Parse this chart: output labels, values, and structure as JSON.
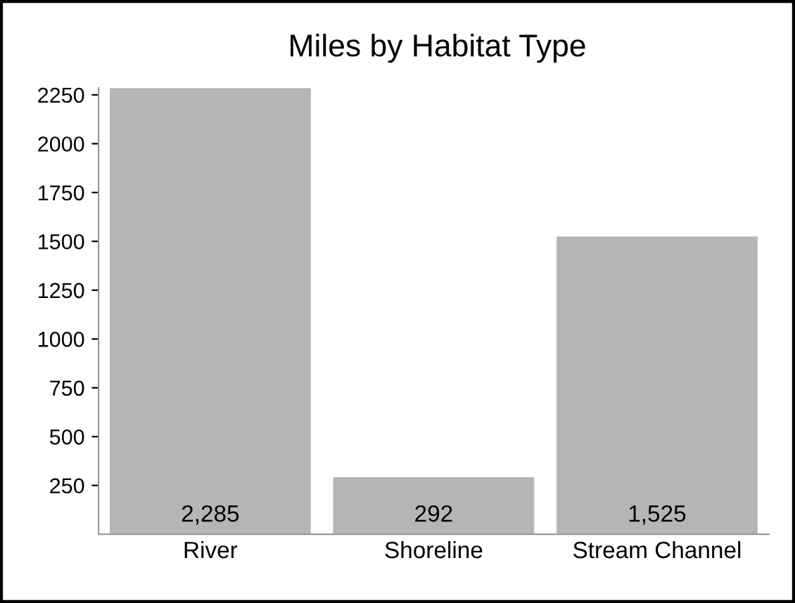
{
  "chart_data": {
    "type": "bar",
    "title": "Miles by Habitat Type",
    "categories": [
      "River",
      "Shoreline",
      "Stream Channel"
    ],
    "values": [
      2285,
      292,
      1525
    ],
    "value_labels": [
      "2,285",
      "292",
      "1,525"
    ],
    "color": "#b5b5b5",
    "ylim": [
      0,
      2285
    ],
    "yticks": [
      250,
      500,
      750,
      1000,
      1250,
      1500,
      1750,
      2000,
      2250
    ],
    "grid": false,
    "legend": false
  }
}
